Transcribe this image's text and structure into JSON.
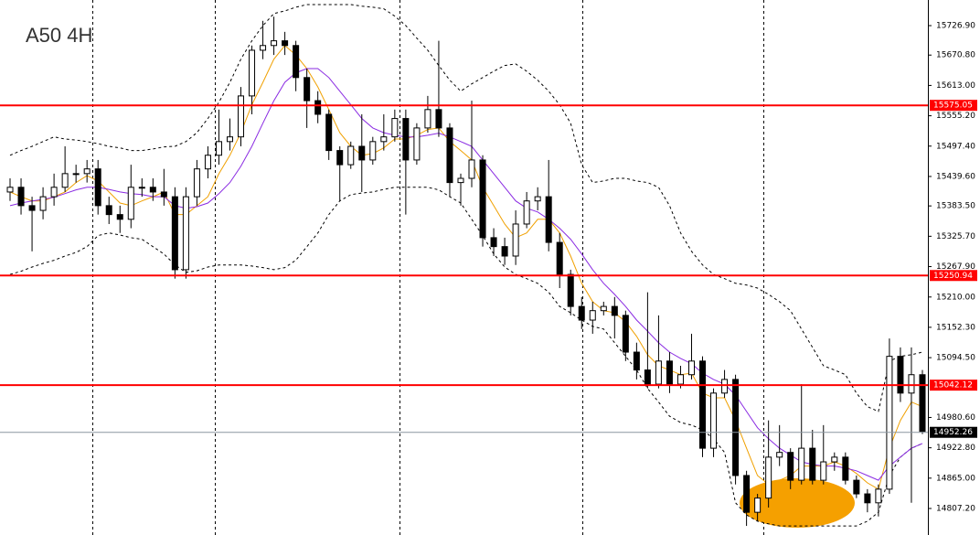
{
  "chart_data": {
    "type": "candlestick",
    "title": "A50 4H",
    "open": [
      15410,
      15419,
      15384,
      15375,
      15401,
      15419,
      15445,
      15445,
      15454,
      15384,
      15367,
      15358,
      15419,
      15419,
      15410,
      15401,
      15262,
      15401,
      15454,
      15480,
      15506,
      15515,
      15593,
      15680,
      15689,
      15698,
      15689,
      15628,
      15584,
      15558,
      15489,
      15462,
      15497,
      15471,
      15506,
      15515,
      15550,
      15471,
      15532,
      15567,
      15532,
      15428,
      15436,
      15471,
      15323,
      15306,
      15288,
      15349,
      15393,
      15401,
      15314,
      15253,
      15192,
      15166,
      15184,
      15192,
      15175,
      15105,
      15071,
      15044,
      15088,
      15044,
      15062,
      15088,
      14922,
      15027,
      15053,
      14870,
      14800,
      14827,
      14905,
      14914,
      14861,
      14922,
      14861,
      14896,
      14905,
      14861,
      14835,
      14818,
      14844,
      15097,
      15027,
      15062
    ],
    "high": [
      15436,
      15436,
      15401,
      15419,
      15445,
      15497,
      15462,
      15471,
      15471,
      15401,
      15384,
      15462,
      15436,
      15436,
      15454,
      15419,
      15419,
      15471,
      15497,
      15567,
      15550,
      15610,
      15689,
      15736,
      15744,
      15715,
      15698,
      15645,
      15602,
      15567,
      15497,
      15506,
      15558,
      15515,
      15558,
      15567,
      15567,
      15541,
      15593,
      15698,
      15541,
      15445,
      15584,
      15480,
      15341,
      15323,
      15375,
      15410,
      15419,
      15471,
      15332,
      15262,
      15210,
      15201,
      15201,
      15210,
      15184,
      15123,
      15219,
      15175,
      15105,
      15079,
      15140,
      15097,
      15036,
      15071,
      15062,
      14879,
      14835,
      14975,
      14966,
      14922,
      15044,
      14957,
      14966,
      14914,
      14914,
      14870,
      14844,
      14853,
      15131,
      15114,
      15114,
      15071
    ],
    "low": [
      15393,
      15367,
      15297,
      15358,
      15384,
      15410,
      15428,
      15428,
      15367,
      15349,
      15332,
      15341,
      15401,
      15393,
      15384,
      15245,
      15245,
      15384,
      15436,
      15462,
      15489,
      15497,
      15558,
      15663,
      15671,
      15671,
      15602,
      15532,
      15541,
      15471,
      15393,
      15454,
      15410,
      15462,
      15489,
      15506,
      15367,
      15462,
      15523,
      15515,
      15401,
      15384,
      15419,
      15306,
      15288,
      15271,
      15271,
      15341,
      15375,
      15297,
      15227,
      15175,
      15149,
      15140,
      15175,
      15131,
      15088,
      15053,
      15036,
      15036,
      15027,
      15036,
      15053,
      14905,
      14905,
      15018,
      14853,
      14774,
      14783,
      14809,
      14888,
      14844,
      14853,
      14853,
      14853,
      14879,
      14853,
      14827,
      14800,
      14792,
      14835,
      15010,
      14818,
      14949
    ],
    "close": [
      15419,
      15384,
      15375,
      15401,
      15419,
      15445,
      15445,
      15454,
      15384,
      15367,
      15358,
      15419,
      15419,
      15410,
      15401,
      15262,
      15401,
      15454,
      15480,
      15506,
      15515,
      15593,
      15680,
      15689,
      15698,
      15689,
      15628,
      15584,
      15558,
      15489,
      15462,
      15497,
      15471,
      15506,
      15515,
      15550,
      15471,
      15532,
      15567,
      15532,
      15428,
      15436,
      15471,
      15323,
      15306,
      15288,
      15349,
      15393,
      15401,
      15314,
      15253,
      15192,
      15166,
      15184,
      15192,
      15175,
      15105,
      15071,
      15044,
      15088,
      15044,
      15062,
      15088,
      14922,
      15027,
      15053,
      14870,
      14800,
      14827,
      14905,
      14914,
      14861,
      14922,
      14861,
      14896,
      14905,
      14861,
      14835,
      14818,
      14844,
      15097,
      15027,
      15062,
      14954
    ],
    "up_color": "#ffffff",
    "down_color": "#000000",
    "series": [
      {
        "color": "#000000",
        "dashed": true,
        "values": [
          15480,
          15489,
          15497,
          15506,
          15515,
          15511,
          15509,
          15506,
          15502,
          15497,
          15494,
          15489,
          15489,
          15492,
          15496,
          15497,
          15506,
          15523,
          15550,
          15581,
          15619,
          15663,
          15698,
          15727,
          15750,
          15755,
          15762,
          15767,
          15767,
          15767,
          15767,
          15767,
          15764,
          15762,
          15759,
          15745,
          15727,
          15703,
          15680,
          15651,
          15623,
          15602,
          15616,
          15628,
          15640,
          15651,
          15654,
          15640,
          15623,
          15602,
          15576,
          15541,
          15462,
          15428,
          15431,
          15436,
          15436,
          15431,
          15428,
          15419,
          15384,
          15332,
          15297,
          15271,
          15253,
          15245,
          15236,
          15233,
          15227,
          15215,
          15201,
          15184,
          15149,
          15114,
          15079,
          15071,
          15062,
          15027,
          15001,
          14992,
          15088,
          15097,
          15100,
          15105
        ]
      },
      {
        "color": "#000000",
        "dashed": true,
        "values": [
          15253,
          15259,
          15267,
          15274,
          15280,
          15288,
          15295,
          15306,
          15327,
          15332,
          15328,
          15323,
          15320,
          15306,
          15292,
          15271,
          15257,
          15260,
          15267,
          15271,
          15271,
          15271,
          15269,
          15266,
          15262,
          15266,
          15280,
          15306,
          15332,
          15367,
          15393,
          15405,
          15408,
          15410,
          15415,
          15419,
          15419,
          15419,
          15419,
          15414,
          15401,
          15389,
          15358,
          15327,
          15292,
          15267,
          15253,
          15245,
          15236,
          15219,
          15192,
          15180,
          15166,
          15154,
          15149,
          15123,
          15097,
          15071,
          15036,
          15010,
          14983,
          14971,
          14966,
          14957,
          14940,
          14914,
          14818,
          14795,
          14783,
          14778,
          14774,
          14774,
          14774,
          14774,
          14774,
          14774,
          14774,
          14774,
          14783,
          14800,
          14870,
          14905,
          14922,
          14931
        ]
      },
      {
        "color": "#f0a000",
        "dashed": false,
        "values": [
          15410,
          15401,
          15393,
          15393,
          15401,
          15410,
          15428,
          15441,
          15431,
          15410,
          15389,
          15384,
          15393,
          15401,
          15410,
          15367,
          15367,
          15384,
          15401,
          15445,
          15480,
          15523,
          15576,
          15619,
          15663,
          15689,
          15671,
          15645,
          15610,
          15567,
          15523,
          15497,
          15480,
          15483,
          15494,
          15511,
          15511,
          15518,
          15529,
          15532,
          15506,
          15489,
          15471,
          15419,
          15384,
          15349,
          15323,
          15332,
          15358,
          15358,
          15332,
          15288,
          15236,
          15201,
          15184,
          15180,
          15163,
          15135,
          15100,
          15079,
          15071,
          15062,
          15065,
          15027,
          15018,
          15018,
          14975,
          14922,
          14870,
          14853,
          14861,
          14870,
          14888,
          14888,
          14888,
          14896,
          14888,
          14874,
          14856,
          14844,
          14922,
          14975,
          15010,
          15001
        ]
      },
      {
        "color": "#8a2be2",
        "dashed": false,
        "values": [
          15384,
          15389,
          15393,
          15396,
          15400,
          15407,
          15414,
          15419,
          15419,
          15415,
          15410,
          15407,
          15405,
          15401,
          15401,
          15384,
          15379,
          15382,
          15389,
          15407,
          15428,
          15459,
          15497,
          15541,
          15584,
          15619,
          15637,
          15645,
          15645,
          15628,
          15602,
          15576,
          15550,
          15532,
          15523,
          15518,
          15515,
          15515,
          15518,
          15522,
          15515,
          15506,
          15497,
          15471,
          15445,
          15419,
          15393,
          15379,
          15372,
          15358,
          15341,
          15320,
          15292,
          15262,
          15236,
          15215,
          15192,
          15166,
          15145,
          15123,
          15105,
          15093,
          15083,
          15065,
          15053,
          15044,
          15023,
          14992,
          14961,
          14940,
          14922,
          14909,
          14896,
          14891,
          14888,
          14888,
          14884,
          14879,
          14870,
          14861,
          14888,
          14905,
          14922,
          14931
        ]
      }
    ],
    "levels": [
      {
        "value": 15575.05,
        "color": "#ff0000"
      },
      {
        "value": 15250.94,
        "color": "#ff0000"
      },
      {
        "value": 15042.12,
        "color": "#ff0000"
      },
      {
        "value": 14952.26,
        "color": "#000000"
      }
    ],
    "ylim": [
      14756.7,
      15775.7
    ],
    "yticks": [
      {
        "value": 15726.9,
        "label": "15726.90"
      },
      {
        "value": 15670.8,
        "label": "15670.80"
      },
      {
        "value": 15613.0,
        "label": "15613.00"
      },
      {
        "value": 15555.2,
        "label": "15555.20"
      },
      {
        "value": 15497.4,
        "label": "15497.40"
      },
      {
        "value": 15439.6,
        "label": "15439.60"
      },
      {
        "value": 15383.5,
        "label": "15383.50"
      },
      {
        "value": 15325.7,
        "label": "15325.70"
      },
      {
        "value": 15267.9,
        "label": "15267.90"
      },
      {
        "value": 15210.0,
        "label": "15210.00"
      },
      {
        "value": 15152.3,
        "label": "15152.30"
      },
      {
        "value": 15094.5,
        "label": "15094.50"
      },
      {
        "value": 14980.6,
        "label": "14980.60"
      },
      {
        "value": 14922.8,
        "label": "14922.80"
      },
      {
        "value": 14865.0,
        "label": "14865.00"
      },
      {
        "value": 14807.2,
        "label": "14807.20"
      }
    ]
  }
}
